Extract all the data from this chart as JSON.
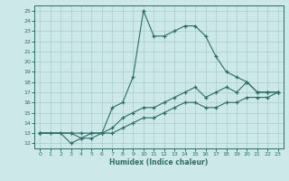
{
  "bg_color": "#cce8e8",
  "line_color": "#2a6e65",
  "grid_color": "#a8cccc",
  "xlabel": "Humidex (Indice chaleur)",
  "xlim": [
    -0.5,
    23.5
  ],
  "ylim": [
    11.5,
    25.5
  ],
  "yticks": [
    12,
    13,
    14,
    15,
    16,
    17,
    18,
    19,
    20,
    21,
    22,
    23,
    24,
    25
  ],
  "xticks": [
    0,
    1,
    2,
    3,
    4,
    5,
    6,
    7,
    8,
    9,
    10,
    11,
    12,
    13,
    14,
    15,
    16,
    17,
    18,
    19,
    20,
    21,
    22,
    23
  ],
  "curve1_x": [
    0,
    1,
    2,
    3,
    4,
    5,
    6,
    7,
    8,
    9,
    10,
    11,
    12,
    13,
    14,
    15,
    16,
    17,
    18,
    19,
    20,
    21,
    22,
    23
  ],
  "curve1_y": [
    13.0,
    13.0,
    13.0,
    12.0,
    12.5,
    13.0,
    13.0,
    15.5,
    16.0,
    18.5,
    25.0,
    22.5,
    22.5,
    23.0,
    23.5,
    23.5,
    22.5,
    20.5,
    19.0,
    18.5,
    18.0,
    17.0,
    17.0,
    17.0
  ],
  "curve2_x": [
    0,
    3,
    4,
    5,
    6,
    7,
    8,
    9,
    10,
    11,
    12,
    13,
    14,
    15,
    16,
    17,
    18,
    19,
    20,
    21,
    22,
    23
  ],
  "curve2_y": [
    13.0,
    13.0,
    13.0,
    13.0,
    13.0,
    13.5,
    14.5,
    15.0,
    15.5,
    15.5,
    16.0,
    16.5,
    17.0,
    17.5,
    16.5,
    17.0,
    17.5,
    17.0,
    18.0,
    17.0,
    17.0,
    17.0
  ],
  "curve3_x": [
    0,
    3,
    4,
    5,
    6,
    7,
    8,
    9,
    10,
    11,
    12,
    13,
    14,
    15,
    16,
    17,
    18,
    19,
    20,
    21,
    22,
    23
  ],
  "curve3_y": [
    13.0,
    13.0,
    12.5,
    12.5,
    13.0,
    13.0,
    13.5,
    14.0,
    14.5,
    14.5,
    15.0,
    15.5,
    16.0,
    16.0,
    15.5,
    15.5,
    16.0,
    16.0,
    16.5,
    16.5,
    16.5,
    17.0
  ]
}
